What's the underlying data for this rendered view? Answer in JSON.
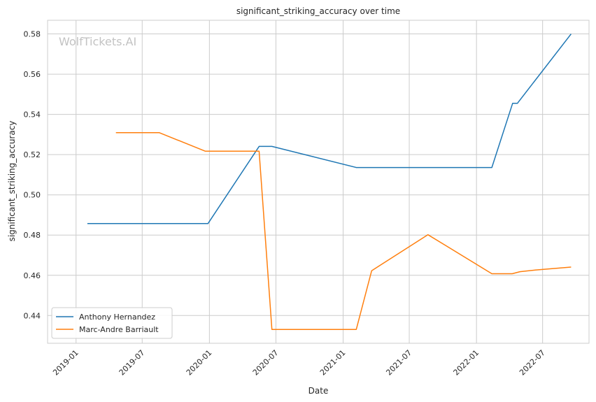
{
  "chart_data": {
    "type": "line",
    "title": "significant_striking_accuracy over time",
    "xlabel": "Date",
    "ylabel": "significant_striking_accuracy",
    "watermark": "WolfTickets.AI",
    "xlim": [
      "2018-10-15",
      "2022-11-05"
    ],
    "ylim": [
      0.4262,
      0.5868
    ],
    "x_ticks": [
      "2019-01",
      "2019-07",
      "2020-01",
      "2020-07",
      "2021-01",
      "2021-07",
      "2022-01",
      "2022-07"
    ],
    "y_ticks": [
      0.44,
      0.46,
      0.48,
      0.5,
      0.52,
      0.54,
      0.56,
      0.58
    ],
    "grid": true,
    "legend_position": "lower-left",
    "series": [
      {
        "name": "Anthony Hernandez",
        "color": "#1f77b4",
        "points": [
          [
            "2019-02-01",
            0.4857
          ],
          [
            "2019-12-28",
            0.4857
          ],
          [
            "2020-05-16",
            0.5241
          ],
          [
            "2020-06-20",
            0.5241
          ],
          [
            "2021-02-06",
            0.5136
          ],
          [
            "2022-02-12",
            0.5136
          ],
          [
            "2022-04-10",
            0.5455
          ],
          [
            "2022-04-23",
            0.5455
          ],
          [
            "2022-09-17",
            0.58
          ]
        ]
      },
      {
        "name": "Marc-Andre Barriault",
        "color": "#ff7f0e",
        "points": [
          [
            "2019-04-20",
            0.5309
          ],
          [
            "2019-08-17",
            0.5309
          ],
          [
            "2019-12-21",
            0.5217
          ],
          [
            "2020-05-16",
            0.5217
          ],
          [
            "2020-06-20",
            0.4331
          ],
          [
            "2021-02-06",
            0.4331
          ],
          [
            "2021-03-20",
            0.4623
          ],
          [
            "2021-08-21",
            0.4802
          ],
          [
            "2022-02-12",
            0.4608
          ],
          [
            "2022-04-09",
            0.4608
          ],
          [
            "2022-04-30",
            0.4618
          ],
          [
            "2022-06-11",
            0.4626
          ],
          [
            "2022-09-17",
            0.4641
          ]
        ]
      }
    ]
  }
}
